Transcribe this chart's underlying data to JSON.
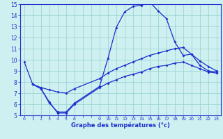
{
  "title": "Graphe des températures (°c)",
  "bg_color": "#cff0f0",
  "grid_color": "#9dd4d4",
  "line_color": "#1a2ecc",
  "xlim": [
    -0.5,
    23.5
  ],
  "ylim": [
    5,
    15
  ],
  "xticks_labeled": [
    0,
    1,
    2,
    3,
    4,
    5,
    6,
    9,
    10,
    11,
    12,
    13,
    14,
    15,
    16,
    17,
    18,
    19,
    20,
    21,
    22,
    23
  ],
  "xticks_all": [
    0,
    1,
    2,
    3,
    4,
    5,
    6,
    7,
    8,
    9,
    10,
    11,
    12,
    13,
    14,
    15,
    16,
    17,
    18,
    19,
    20,
    21,
    22,
    23
  ],
  "yticks": [
    5,
    6,
    7,
    8,
    9,
    10,
    11,
    12,
    13,
    14,
    15
  ],
  "curve1_x": [
    0,
    1,
    2,
    3,
    4,
    5,
    6,
    9,
    10,
    11,
    12,
    13,
    14,
    15,
    16,
    17,
    18,
    19,
    20,
    21,
    22,
    23
  ],
  "curve1_y": [
    9.8,
    7.8,
    7.4,
    6.1,
    5.3,
    5.3,
    6.1,
    7.6,
    10.1,
    12.9,
    14.3,
    14.8,
    14.9,
    15.2,
    14.4,
    13.7,
    11.6,
    10.4,
    10.5,
    9.5,
    9.0,
    8.9
  ],
  "curve2_x": [
    1,
    2,
    3,
    4,
    5,
    6,
    9,
    10,
    11,
    12,
    13,
    14,
    15,
    16,
    17,
    18,
    19,
    20,
    21,
    22,
    23
  ],
  "curve2_y": [
    7.8,
    7.5,
    7.3,
    7.1,
    7.0,
    7.4,
    8.3,
    8.8,
    9.2,
    9.5,
    9.8,
    10.1,
    10.4,
    10.6,
    10.8,
    11.0,
    11.1,
    10.5,
    9.9,
    9.4,
    9.0
  ],
  "curve3_x": [
    1,
    2,
    3,
    4,
    5,
    6,
    9,
    10,
    11,
    12,
    13,
    14,
    15,
    16,
    17,
    18,
    19,
    20,
    21,
    22,
    23
  ],
  "curve3_y": [
    7.8,
    7.4,
    6.2,
    5.2,
    5.2,
    6.0,
    7.5,
    7.9,
    8.2,
    8.5,
    8.7,
    8.9,
    9.2,
    9.4,
    9.5,
    9.7,
    9.8,
    9.5,
    9.2,
    8.9,
    8.8
  ]
}
